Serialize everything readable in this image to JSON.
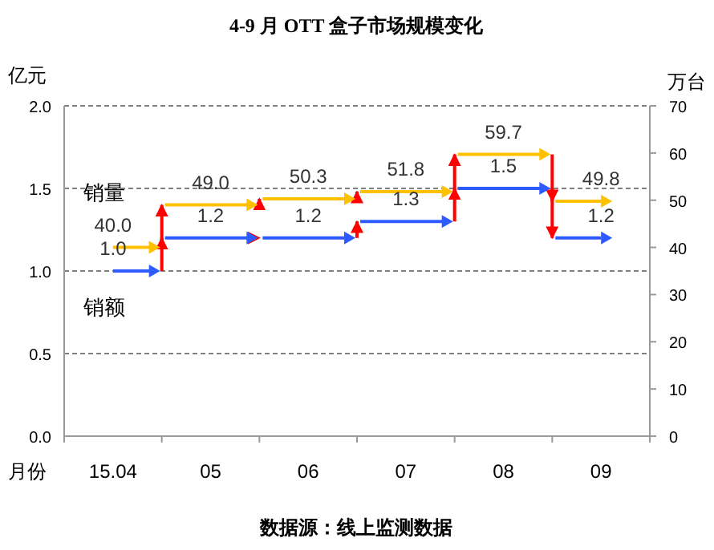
{
  "chart_data": {
    "type": "step",
    "title": "4-9 月 OTT 盒子市场规模变化",
    "xlabel": "月份",
    "ylabel": "亿元",
    "y2label": "万台",
    "categories": [
      "15.04",
      "05",
      "06",
      "07",
      "08",
      "09"
    ],
    "series": [
      {
        "name": "销量",
        "color": "#ffc000",
        "axis": "y2",
        "values": [
          40.0,
          49.0,
          50.3,
          51.8,
          59.7,
          49.8
        ],
        "value_labels": [
          "40.0",
          "49.0",
          "50.3",
          "51.8",
          "59.7",
          "49.8"
        ]
      },
      {
        "name": "销额",
        "color": "#2e5bff",
        "values": [
          1.0,
          1.2,
          1.2,
          1.3,
          1.5,
          1.2
        ],
        "value_labels": [
          "1.0",
          "1.2",
          "1.2",
          "1.3",
          "1.5",
          "1.2"
        ]
      }
    ],
    "ylim": [
      0,
      2
    ],
    "yticks": [
      {
        "value": 0,
        "label": "0.0"
      },
      {
        "value": 0.5,
        "label": "0.5"
      },
      {
        "value": 1,
        "label": "1.0"
      },
      {
        "value": 1.5,
        "label": "1.5"
      },
      {
        "value": 2,
        "label": "2.0"
      }
    ],
    "y2lim": [
      0,
      70
    ],
    "y2ticks": [
      0,
      10,
      20,
      30,
      40,
      50,
      60,
      70
    ],
    "grid": "y",
    "line_style": "solid",
    "legend": "left",
    "annotations": [
      "数据源：线上监测数据"
    ]
  }
}
